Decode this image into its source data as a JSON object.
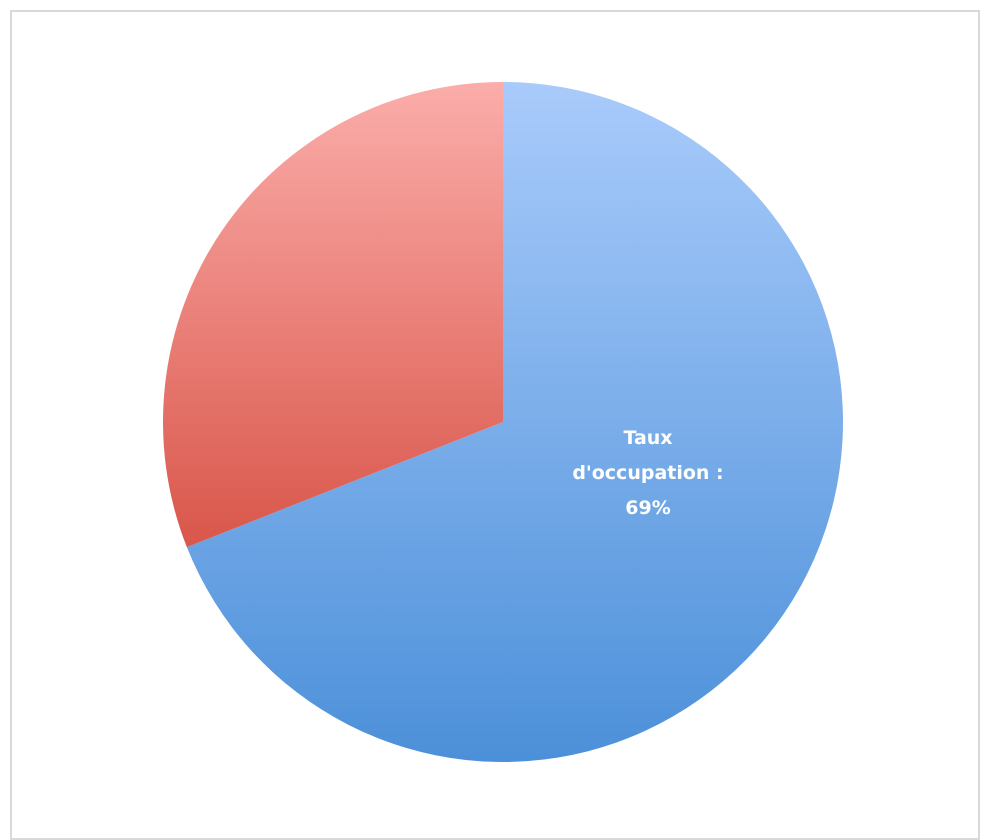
{
  "chart_data": {
    "type": "pie",
    "title": "",
    "slices": [
      {
        "value": 69,
        "color": "#79a9e9",
        "data_label": [
          "Taux",
          "d'occupation :",
          "69%"
        ]
      },
      {
        "value": 31,
        "color": "#ec8078",
        "data_label": []
      }
    ],
    "start_angle_deg": 0,
    "direction": "clockwise",
    "legend": "none"
  }
}
